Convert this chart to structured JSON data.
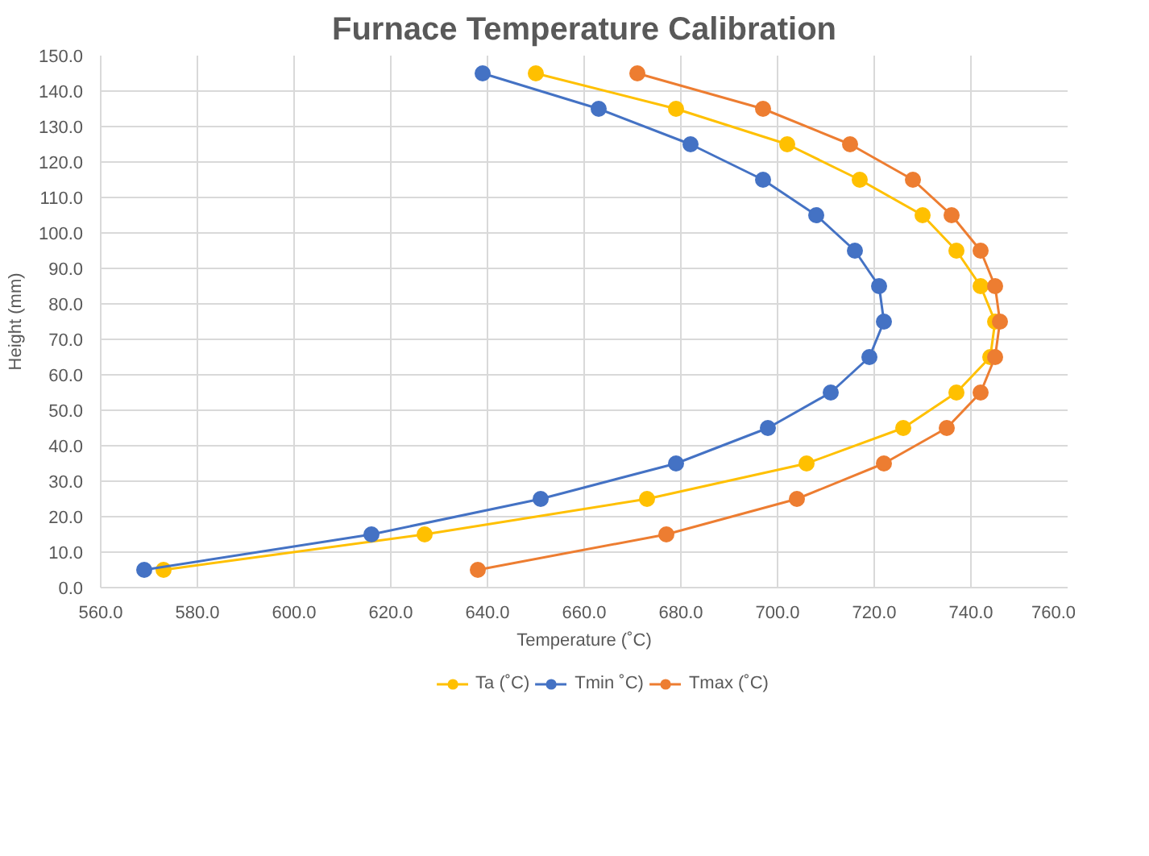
{
  "chart_data": {
    "type": "line",
    "title": "Furnace Temperature Calibration",
    "xlabel": "Temperature (˚C)",
    "ylabel": "Height (mm)",
    "xlim": [
      560,
      760
    ],
    "xticks": [
      {
        "value": 560,
        "label": "560.0"
      },
      {
        "value": 580,
        "label": "580.0"
      },
      {
        "value": 600,
        "label": "600.0"
      },
      {
        "value": 620,
        "label": "620.0"
      },
      {
        "value": 640,
        "label": "640.0"
      },
      {
        "value": 660,
        "label": "660.0"
      },
      {
        "value": 680,
        "label": "680.0"
      },
      {
        "value": 700,
        "label": "700.0"
      },
      {
        "value": 720,
        "label": "720.0"
      },
      {
        "value": 740,
        "label": "740.0"
      },
      {
        "value": 760,
        "label": "760.0"
      }
    ],
    "ylim": [
      0,
      150
    ],
    "yticks": [
      {
        "value": 0,
        "label": "0.0"
      },
      {
        "value": 10,
        "label": "10.0"
      },
      {
        "value": 20,
        "label": "20.0"
      },
      {
        "value": 30,
        "label": "30.0"
      },
      {
        "value": 40,
        "label": "40.0"
      },
      {
        "value": 50,
        "label": "50.0"
      },
      {
        "value": 60,
        "label": "60.0"
      },
      {
        "value": 70,
        "label": "70.0"
      },
      {
        "value": 80,
        "label": "80.0"
      },
      {
        "value": 90,
        "label": "90.0"
      },
      {
        "value": 100,
        "label": "100.0"
      },
      {
        "value": 110,
        "label": "110.0"
      },
      {
        "value": 120,
        "label": "120.0"
      },
      {
        "value": 130,
        "label": "130.0"
      },
      {
        "value": 140,
        "label": "140.0"
      },
      {
        "value": 150,
        "label": "150.0"
      }
    ],
    "grid": true,
    "legend": "bottom",
    "marker": "circle",
    "line_style": "solid",
    "series": [
      {
        "name": "Ta (˚C)",
        "color": "#ffc000",
        "x": [
          573,
          627,
          673,
          706,
          726,
          737,
          744,
          745,
          742,
          737,
          730,
          717,
          702,
          679,
          650
        ],
        "values": [
          5,
          15,
          25,
          35,
          45,
          55,
          65,
          75,
          85,
          95,
          105,
          115,
          125,
          135,
          145
        ]
      },
      {
        "name": "Tmin ˚C)",
        "color": "#4472c4",
        "x": [
          569,
          616,
          651,
          679,
          698,
          711,
          719,
          722,
          721,
          716,
          708,
          697,
          682,
          663,
          639
        ],
        "values": [
          5,
          15,
          25,
          35,
          45,
          55,
          65,
          75,
          85,
          95,
          105,
          115,
          125,
          135,
          145
        ]
      },
      {
        "name": "Tmax (˚C)",
        "color": "#ed7d31",
        "x": [
          638,
          677,
          704,
          722,
          735,
          742,
          745,
          746,
          745,
          742,
          736,
          728,
          715,
          697,
          671
        ],
        "values": [
          5,
          15,
          25,
          35,
          45,
          55,
          65,
          75,
          85,
          95,
          105,
          115,
          125,
          135,
          145
        ]
      }
    ]
  }
}
